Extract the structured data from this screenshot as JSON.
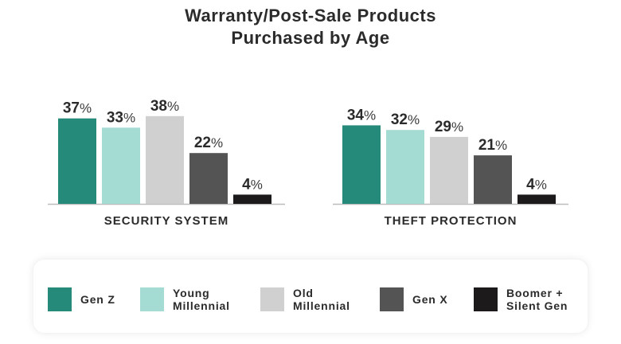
{
  "chart_data": {
    "type": "bar",
    "title": "Warranty/Post-Sale Products Purchased by Age",
    "title_lines": [
      "Warranty/Post-Sale Products",
      "Purchased by Age"
    ],
    "categories": [
      "SECURITY SYSTEM",
      "THEFT PROTECTION"
    ],
    "value_suffix": "%",
    "ylim": [
      0,
      40
    ],
    "grid": false,
    "legend_position": "bottom",
    "series": [
      {
        "name": "Gen Z",
        "label_lines": [
          "Gen Z"
        ],
        "color": "#268a7a",
        "values": [
          37,
          34
        ]
      },
      {
        "name": "Young Millennial",
        "label_lines": [
          "Young",
          "Millennial"
        ],
        "color": "#a4dbd2",
        "values": [
          33,
          32
        ]
      },
      {
        "name": "Old Millennial",
        "label_lines": [
          "Old",
          "Millennial"
        ],
        "color": "#d0d0d0",
        "values": [
          38,
          29
        ]
      },
      {
        "name": "Gen X",
        "label_lines": [
          "Gen X"
        ],
        "color": "#545454",
        "values": [
          22,
          21
        ]
      },
      {
        "name": "Boomer + Silent Gen",
        "label_lines": [
          "Boomer +",
          "Silent Gen"
        ],
        "color": "#1c1a1b",
        "values": [
          4,
          4
        ]
      }
    ]
  }
}
